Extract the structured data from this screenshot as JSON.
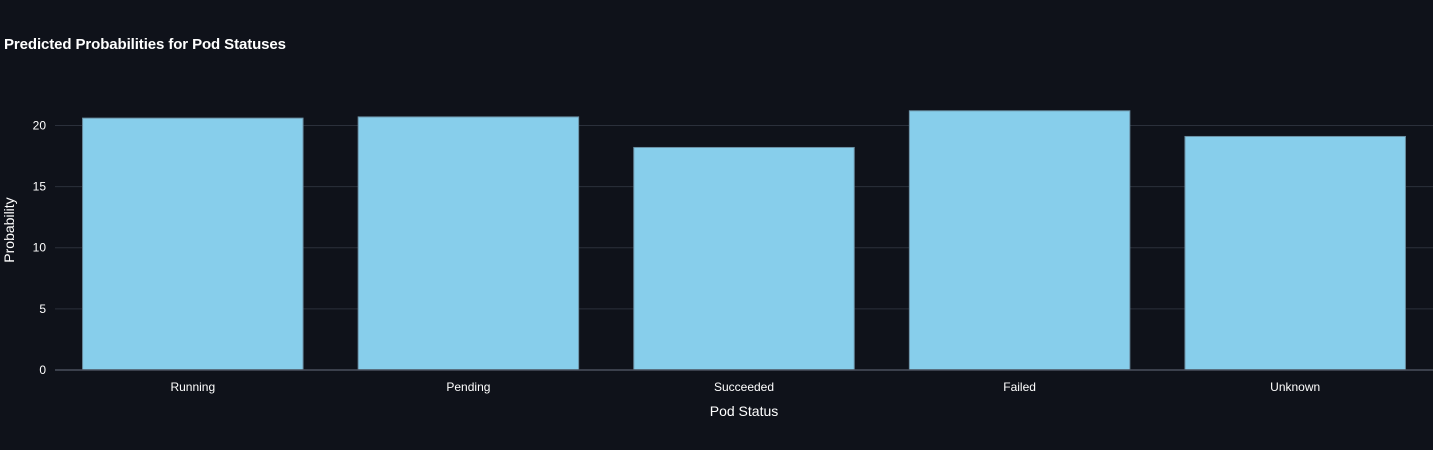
{
  "chart_data": {
    "type": "bar",
    "title": "Predicted Probabilities for Pod Statuses",
    "xlabel": "Pod Status",
    "ylabel": "Probability",
    "categories": [
      "Running",
      "Pending",
      "Succeeded",
      "Failed",
      "Unknown"
    ],
    "values": [
      20.6,
      20.7,
      18.2,
      21.2,
      19.1
    ],
    "ylim": [
      0,
      22.9
    ],
    "yticks": [
      0,
      5,
      10,
      15,
      20
    ],
    "grid": true,
    "legend": "none",
    "colors": {
      "background": "#0f121a",
      "bar_fill": "#87ceeb",
      "bar_stroke": "#6a8fa3",
      "grid": "#2b303b",
      "axis_line": "#4a505c",
      "text": "#ffffff"
    }
  }
}
